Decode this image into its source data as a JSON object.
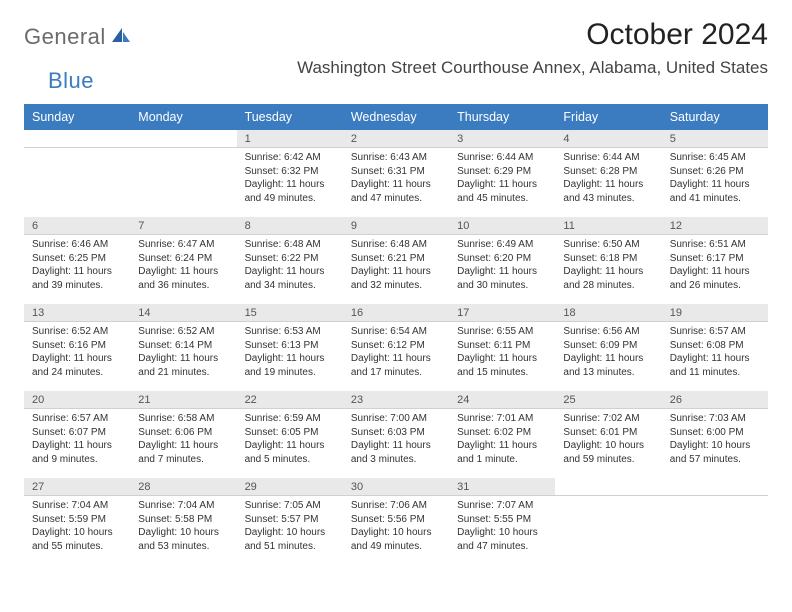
{
  "logo": {
    "text1": "General",
    "text2": "Blue"
  },
  "title": "October 2024",
  "location": "Washington Street Courthouse Annex, Alabama, United States",
  "colors": {
    "header_bg": "#3b7bbf",
    "header_text": "#ffffff",
    "daynum_bg": "#e9e9e9",
    "page_bg": "#ffffff",
    "text": "#333333",
    "logo_gray": "#6b6b6b",
    "logo_blue": "#3b7bbf"
  },
  "weekdays": [
    "Sunday",
    "Monday",
    "Tuesday",
    "Wednesday",
    "Thursday",
    "Friday",
    "Saturday"
  ],
  "weeks": [
    {
      "nums": [
        "",
        "",
        "1",
        "2",
        "3",
        "4",
        "5"
      ],
      "cells": [
        {
          "sunrise": "",
          "sunset": "",
          "daylight": ""
        },
        {
          "sunrise": "",
          "sunset": "",
          "daylight": ""
        },
        {
          "sunrise": "Sunrise: 6:42 AM",
          "sunset": "Sunset: 6:32 PM",
          "daylight": "Daylight: 11 hours and 49 minutes."
        },
        {
          "sunrise": "Sunrise: 6:43 AM",
          "sunset": "Sunset: 6:31 PM",
          "daylight": "Daylight: 11 hours and 47 minutes."
        },
        {
          "sunrise": "Sunrise: 6:44 AM",
          "sunset": "Sunset: 6:29 PM",
          "daylight": "Daylight: 11 hours and 45 minutes."
        },
        {
          "sunrise": "Sunrise: 6:44 AM",
          "sunset": "Sunset: 6:28 PM",
          "daylight": "Daylight: 11 hours and 43 minutes."
        },
        {
          "sunrise": "Sunrise: 6:45 AM",
          "sunset": "Sunset: 6:26 PM",
          "daylight": "Daylight: 11 hours and 41 minutes."
        }
      ]
    },
    {
      "nums": [
        "6",
        "7",
        "8",
        "9",
        "10",
        "11",
        "12"
      ],
      "cells": [
        {
          "sunrise": "Sunrise: 6:46 AM",
          "sunset": "Sunset: 6:25 PM",
          "daylight": "Daylight: 11 hours and 39 minutes."
        },
        {
          "sunrise": "Sunrise: 6:47 AM",
          "sunset": "Sunset: 6:24 PM",
          "daylight": "Daylight: 11 hours and 36 minutes."
        },
        {
          "sunrise": "Sunrise: 6:48 AM",
          "sunset": "Sunset: 6:22 PM",
          "daylight": "Daylight: 11 hours and 34 minutes."
        },
        {
          "sunrise": "Sunrise: 6:48 AM",
          "sunset": "Sunset: 6:21 PM",
          "daylight": "Daylight: 11 hours and 32 minutes."
        },
        {
          "sunrise": "Sunrise: 6:49 AM",
          "sunset": "Sunset: 6:20 PM",
          "daylight": "Daylight: 11 hours and 30 minutes."
        },
        {
          "sunrise": "Sunrise: 6:50 AM",
          "sunset": "Sunset: 6:18 PM",
          "daylight": "Daylight: 11 hours and 28 minutes."
        },
        {
          "sunrise": "Sunrise: 6:51 AM",
          "sunset": "Sunset: 6:17 PM",
          "daylight": "Daylight: 11 hours and 26 minutes."
        }
      ]
    },
    {
      "nums": [
        "13",
        "14",
        "15",
        "16",
        "17",
        "18",
        "19"
      ],
      "cells": [
        {
          "sunrise": "Sunrise: 6:52 AM",
          "sunset": "Sunset: 6:16 PM",
          "daylight": "Daylight: 11 hours and 24 minutes."
        },
        {
          "sunrise": "Sunrise: 6:52 AM",
          "sunset": "Sunset: 6:14 PM",
          "daylight": "Daylight: 11 hours and 21 minutes."
        },
        {
          "sunrise": "Sunrise: 6:53 AM",
          "sunset": "Sunset: 6:13 PM",
          "daylight": "Daylight: 11 hours and 19 minutes."
        },
        {
          "sunrise": "Sunrise: 6:54 AM",
          "sunset": "Sunset: 6:12 PM",
          "daylight": "Daylight: 11 hours and 17 minutes."
        },
        {
          "sunrise": "Sunrise: 6:55 AM",
          "sunset": "Sunset: 6:11 PM",
          "daylight": "Daylight: 11 hours and 15 minutes."
        },
        {
          "sunrise": "Sunrise: 6:56 AM",
          "sunset": "Sunset: 6:09 PM",
          "daylight": "Daylight: 11 hours and 13 minutes."
        },
        {
          "sunrise": "Sunrise: 6:57 AM",
          "sunset": "Sunset: 6:08 PM",
          "daylight": "Daylight: 11 hours and 11 minutes."
        }
      ]
    },
    {
      "nums": [
        "20",
        "21",
        "22",
        "23",
        "24",
        "25",
        "26"
      ],
      "cells": [
        {
          "sunrise": "Sunrise: 6:57 AM",
          "sunset": "Sunset: 6:07 PM",
          "daylight": "Daylight: 11 hours and 9 minutes."
        },
        {
          "sunrise": "Sunrise: 6:58 AM",
          "sunset": "Sunset: 6:06 PM",
          "daylight": "Daylight: 11 hours and 7 minutes."
        },
        {
          "sunrise": "Sunrise: 6:59 AM",
          "sunset": "Sunset: 6:05 PM",
          "daylight": "Daylight: 11 hours and 5 minutes."
        },
        {
          "sunrise": "Sunrise: 7:00 AM",
          "sunset": "Sunset: 6:03 PM",
          "daylight": "Daylight: 11 hours and 3 minutes."
        },
        {
          "sunrise": "Sunrise: 7:01 AM",
          "sunset": "Sunset: 6:02 PM",
          "daylight": "Daylight: 11 hours and 1 minute."
        },
        {
          "sunrise": "Sunrise: 7:02 AM",
          "sunset": "Sunset: 6:01 PM",
          "daylight": "Daylight: 10 hours and 59 minutes."
        },
        {
          "sunrise": "Sunrise: 7:03 AM",
          "sunset": "Sunset: 6:00 PM",
          "daylight": "Daylight: 10 hours and 57 minutes."
        }
      ]
    },
    {
      "nums": [
        "27",
        "28",
        "29",
        "30",
        "31",
        "",
        ""
      ],
      "cells": [
        {
          "sunrise": "Sunrise: 7:04 AM",
          "sunset": "Sunset: 5:59 PM",
          "daylight": "Daylight: 10 hours and 55 minutes."
        },
        {
          "sunrise": "Sunrise: 7:04 AM",
          "sunset": "Sunset: 5:58 PM",
          "daylight": "Daylight: 10 hours and 53 minutes."
        },
        {
          "sunrise": "Sunrise: 7:05 AM",
          "sunset": "Sunset: 5:57 PM",
          "daylight": "Daylight: 10 hours and 51 minutes."
        },
        {
          "sunrise": "Sunrise: 7:06 AM",
          "sunset": "Sunset: 5:56 PM",
          "daylight": "Daylight: 10 hours and 49 minutes."
        },
        {
          "sunrise": "Sunrise: 7:07 AM",
          "sunset": "Sunset: 5:55 PM",
          "daylight": "Daylight: 10 hours and 47 minutes."
        },
        {
          "sunrise": "",
          "sunset": "",
          "daylight": ""
        },
        {
          "sunrise": "",
          "sunset": "",
          "daylight": ""
        }
      ]
    }
  ]
}
